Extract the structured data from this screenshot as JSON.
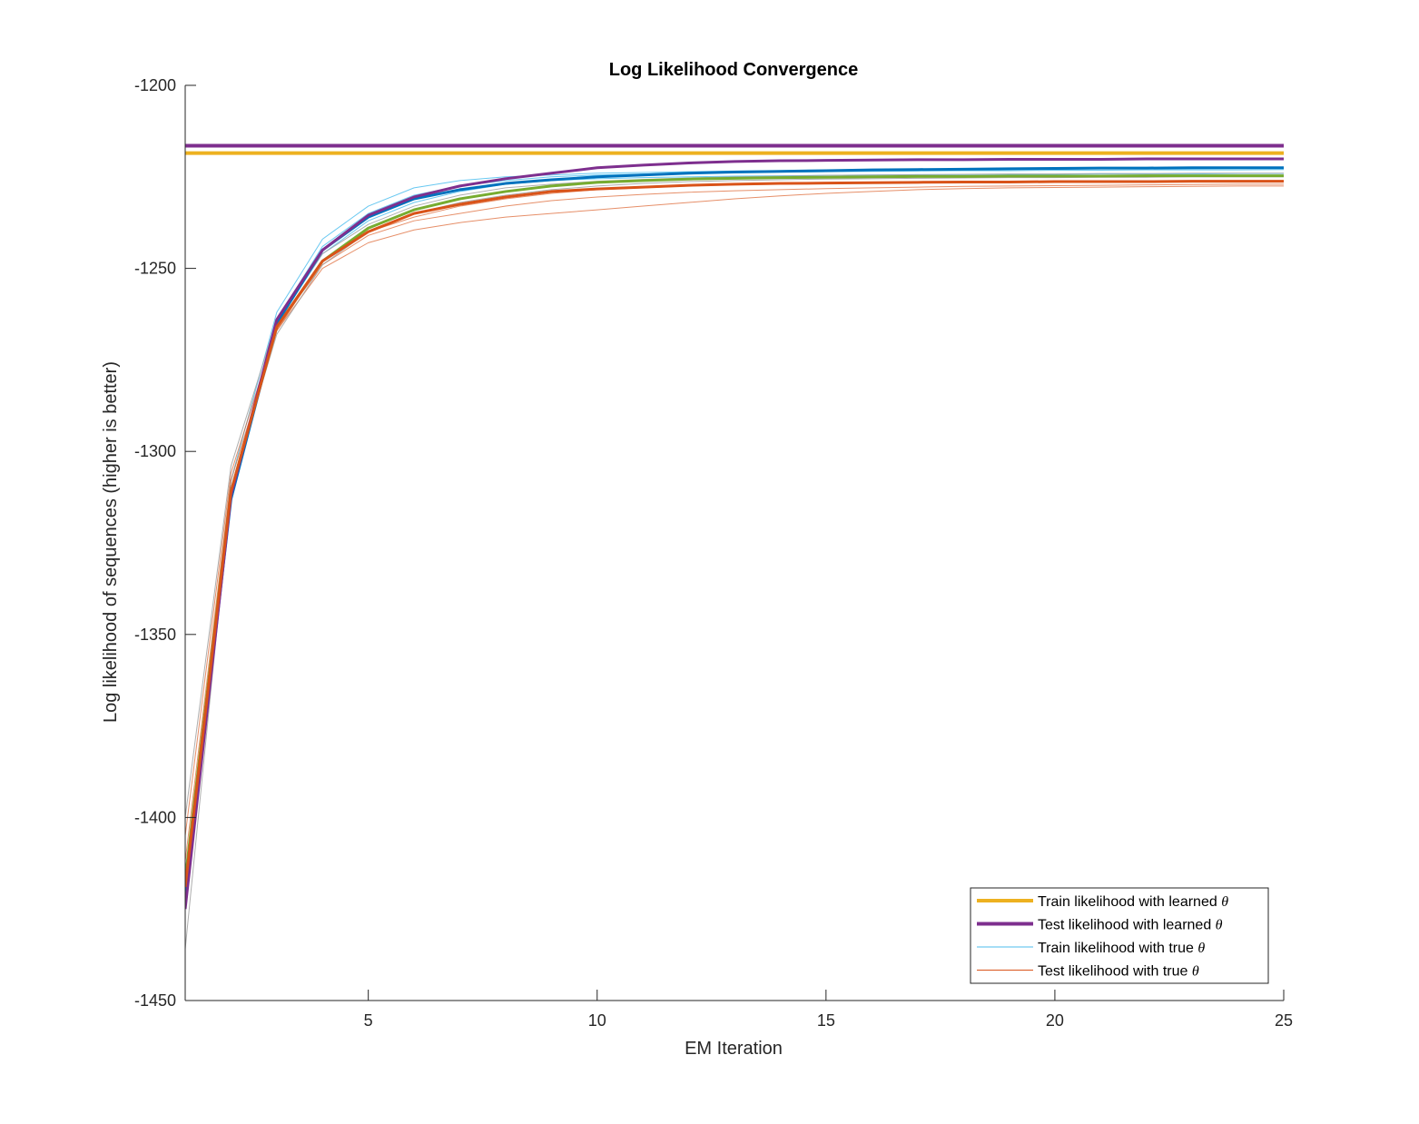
{
  "chart_data": {
    "type": "line",
    "title": "Log Likelihood Convergence",
    "xlabel": "EM Iteration",
    "ylabel": "Log likelihood of sequences (higher is better)",
    "xlim": [
      1,
      25
    ],
    "ylim": [
      -1450,
      -1200
    ],
    "xticks": [
      5,
      10,
      15,
      20,
      25
    ],
    "yticks": [
      -1450,
      -1400,
      -1350,
      -1300,
      -1250,
      -1200
    ],
    "grid": false,
    "legend_position": "bottom-right",
    "legend": [
      {
        "label": "Train likelihood with learned",
        "symbol": "θ",
        "color": "#EDB120",
        "width": 4
      },
      {
        "label": "Test likelihood with learned",
        "symbol": "θ",
        "color": "#7E2F8E",
        "width": 4
      },
      {
        "label": "Train likelihood with true",
        "symbol": "θ",
        "color": "#4DBEEE",
        "width": 1
      },
      {
        "label": "Test likelihood with true",
        "symbol": "θ",
        "color": "#D95319",
        "width": 1
      }
    ],
    "x": [
      1,
      2,
      3,
      4,
      5,
      6,
      7,
      8,
      9,
      10,
      11,
      12,
      13,
      14,
      15,
      16,
      17,
      18,
      19,
      20,
      21,
      22,
      23,
      24,
      25
    ],
    "horizontal_lines": [
      {
        "y": -1216.5,
        "color": "#7E2F8E",
        "width": 4
      },
      {
        "y": -1218.5,
        "color": "#EDB120",
        "width": 4
      }
    ],
    "series": [
      {
        "color": "#4DBEEE",
        "width": 1,
        "opacity": 0.85,
        "values": [
          -1418,
          -1308,
          -1262,
          -1242,
          -1233,
          -1228,
          -1226,
          -1225,
          -1224.5,
          -1224,
          -1223.8,
          -1223.6,
          -1223.4,
          -1223.3,
          -1223.2,
          -1223.1,
          -1223,
          -1223,
          -1222.9,
          -1222.9,
          -1222.8,
          -1222.8,
          -1222.8,
          -1222.7,
          -1222.7
        ]
      },
      {
        "color": "#4DBEEE",
        "width": 1,
        "opacity": 0.85,
        "values": [
          -1420,
          -1312,
          -1264,
          -1244,
          -1235,
          -1230,
          -1227.5,
          -1226,
          -1225,
          -1224.5,
          -1224.2,
          -1224,
          -1223.8,
          -1223.7,
          -1223.6,
          -1223.5,
          -1223.4,
          -1223.3,
          -1223.3,
          -1223.2,
          -1223.2,
          -1223.1,
          -1223.1,
          -1223.1,
          -1223
        ]
      },
      {
        "color": "#4DBEEE",
        "width": 1,
        "opacity": 0.85,
        "values": [
          -1422,
          -1314,
          -1265,
          -1246,
          -1237,
          -1232,
          -1229,
          -1227,
          -1226,
          -1225.5,
          -1225.2,
          -1225,
          -1224.8,
          -1224.7,
          -1224.6,
          -1224.5,
          -1224.4,
          -1224.4,
          -1224.3,
          -1224.3,
          -1224.2,
          -1224.2,
          -1224.2,
          -1224.1,
          -1224.1
        ]
      },
      {
        "color": "#D95319",
        "width": 1,
        "opacity": 0.65,
        "values": [
          -1416,
          -1310,
          -1267,
          -1250,
          -1243,
          -1239.5,
          -1237.5,
          -1236,
          -1235,
          -1234,
          -1233,
          -1232,
          -1231,
          -1230.2,
          -1229.5,
          -1229,
          -1228.5,
          -1228.2,
          -1228,
          -1227.9,
          -1227.8,
          -1227.7,
          -1227.6,
          -1227.5,
          -1227.5
        ]
      },
      {
        "color": "#D95319",
        "width": 1,
        "opacity": 0.65,
        "values": [
          -1405,
          -1306,
          -1266,
          -1249,
          -1241,
          -1237,
          -1235,
          -1233,
          -1231.5,
          -1230.5,
          -1229.8,
          -1229.2,
          -1228.8,
          -1228.5,
          -1228.2,
          -1228,
          -1227.8,
          -1227.6,
          -1227.5,
          -1227.4,
          -1227.3,
          -1227.2,
          -1227.1,
          -1227,
          -1227
        ]
      },
      {
        "color": "#D95319",
        "width": 1,
        "opacity": 0.65,
        "values": [
          -1412,
          -1308,
          -1267,
          -1248,
          -1240,
          -1236,
          -1233,
          -1231,
          -1229.5,
          -1228.5,
          -1228,
          -1227.5,
          -1227.2,
          -1227,
          -1226.8,
          -1226.7,
          -1226.6,
          -1226.5,
          -1226.5,
          -1226.4,
          -1226.4,
          -1226.3,
          -1226.3,
          -1226.3,
          -1226.3
        ]
      },
      {
        "color": "#A0A0A0",
        "width": 1,
        "opacity": 0.85,
        "values": [
          -1436,
          -1310,
          -1268,
          -1249,
          -1240,
          -1235,
          -1232,
          -1230,
          -1228.5,
          -1227.5,
          -1226.8,
          -1226.3,
          -1226,
          -1225.8,
          -1225.6,
          -1225.5,
          -1225.4,
          -1225.3,
          -1225.2,
          -1225.2,
          -1225.1,
          -1225.1,
          -1225,
          -1225,
          -1225
        ]
      },
      {
        "color": "#A0A0A0",
        "width": 1,
        "opacity": 0.85,
        "values": [
          -1400,
          -1304,
          -1264,
          -1246,
          -1238,
          -1233,
          -1230,
          -1228,
          -1227,
          -1226.2,
          -1225.7,
          -1225.3,
          -1225,
          -1224.8,
          -1224.6,
          -1224.5,
          -1224.4,
          -1224.3,
          -1224.2,
          -1224.2,
          -1224.1,
          -1224.1,
          -1224,
          -1224,
          -1224
        ]
      },
      {
        "color": "#77AC30",
        "width": 3,
        "opacity": 1,
        "values": [
          -1417,
          -1311,
          -1266,
          -1248,
          -1239,
          -1234,
          -1231,
          -1229,
          -1227.5,
          -1226.5,
          -1226,
          -1225.6,
          -1225.4,
          -1225.2,
          -1225.1,
          -1225,
          -1224.9,
          -1224.9,
          -1224.8,
          -1224.8,
          -1224.8,
          -1224.7,
          -1224.7,
          -1224.7,
          -1224.7
        ]
      },
      {
        "color": "#0072BD",
        "width": 3,
        "opacity": 1,
        "values": [
          -1421,
          -1313,
          -1265,
          -1245,
          -1236,
          -1231,
          -1228.5,
          -1226.8,
          -1225.8,
          -1225,
          -1224.5,
          -1224,
          -1223.7,
          -1223.5,
          -1223.3,
          -1223.1,
          -1223,
          -1222.9,
          -1222.8,
          -1222.7,
          -1222.6,
          -1222.6,
          -1222.5,
          -1222.5,
          -1222.5
        ]
      },
      {
        "color": "#7E2F8E",
        "width": 3,
        "opacity": 1,
        "values": [
          -1425,
          -1312,
          -1264,
          -1245,
          -1235.5,
          -1230.5,
          -1227.5,
          -1225.5,
          -1224,
          -1222.5,
          -1221.8,
          -1221.2,
          -1220.8,
          -1220.6,
          -1220.5,
          -1220.4,
          -1220.3,
          -1220.3,
          -1220.2,
          -1220.2,
          -1220.2,
          -1220.1,
          -1220.1,
          -1220.1,
          -1220.1
        ]
      },
      {
        "color": "#D95319",
        "width": 3,
        "opacity": 1,
        "values": [
          -1419,
          -1311,
          -1266,
          -1248,
          -1240,
          -1235,
          -1232.5,
          -1230.5,
          -1229,
          -1228.3,
          -1227.8,
          -1227.3,
          -1227,
          -1226.8,
          -1226.7,
          -1226.6,
          -1226.5,
          -1226.4,
          -1226.4,
          -1226.3,
          -1226.3,
          -1226.3,
          -1226.2,
          -1226.2,
          -1226.2
        ]
      }
    ]
  }
}
